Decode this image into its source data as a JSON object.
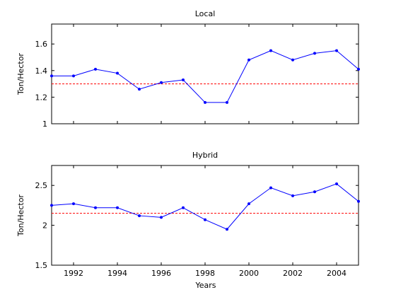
{
  "figure": {
    "xlabel": "Years"
  },
  "chart_data": [
    {
      "type": "line",
      "title": "Local",
      "xlabel": "",
      "ylabel": "Ton/Hector",
      "xlim": [
        1991,
        2005
      ],
      "ylim": [
        1,
        1.75
      ],
      "yticks": [
        1,
        1.2,
        1.4,
        1.6
      ],
      "ytick_labels": [
        "1",
        "1.2",
        "1.4",
        "1.6"
      ],
      "xticks": [
        1992,
        1994,
        1996,
        1998,
        2000,
        2002,
        2004
      ],
      "xtick_labels": [],
      "grid": false,
      "series": [
        {
          "color": "#0000ff",
          "marker": "dot",
          "x": [
            1991,
            1992,
            1993,
            1994,
            1995,
            1996,
            1997,
            1998,
            1999,
            2000,
            2001,
            2002,
            2003,
            2004,
            2005
          ],
          "values": [
            1.36,
            1.36,
            1.41,
            1.38,
            1.26,
            1.31,
            1.33,
            1.16,
            1.16,
            1.48,
            1.55,
            1.48,
            1.53,
            1.55,
            1.41
          ]
        }
      ],
      "reference_line": {
        "y": 1.3,
        "color": "#ff0000",
        "style": "dashed"
      }
    },
    {
      "type": "line",
      "title": "Hybrid",
      "xlabel": "Years",
      "ylabel": "Ton/Hector",
      "xlim": [
        1991,
        2005
      ],
      "ylim": [
        1.5,
        2.75
      ],
      "yticks": [
        1.5,
        2,
        2.5
      ],
      "ytick_labels": [
        "1.5",
        "2",
        "2.5"
      ],
      "xticks": [
        1992,
        1994,
        1996,
        1998,
        2000,
        2002,
        2004
      ],
      "xtick_labels": [
        "1992",
        "1994",
        "1996",
        "1998",
        "2000",
        "2002",
        "2004"
      ],
      "grid": false,
      "series": [
        {
          "color": "#0000ff",
          "marker": "dot",
          "x": [
            1991,
            1992,
            1993,
            1994,
            1995,
            1996,
            1997,
            1998,
            1999,
            2000,
            2001,
            2002,
            2003,
            2004,
            2005
          ],
          "values": [
            2.25,
            2.27,
            2.22,
            2.22,
            2.12,
            2.1,
            2.22,
            2.07,
            1.95,
            2.27,
            2.47,
            2.37,
            2.42,
            2.52,
            2.3
          ]
        }
      ],
      "reference_line": {
        "y": 2.15,
        "color": "#ff0000",
        "style": "dashed"
      }
    }
  ]
}
